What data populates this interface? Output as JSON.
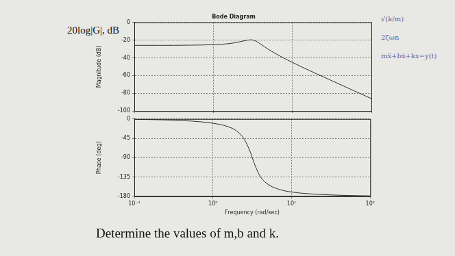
{
  "page": {
    "side_label": "20log|G|, dB",
    "question": "Determine the values of m,b and k.",
    "notes": [
      "√(k/m)",
      "2ζωn",
      "mẍ+bẋ+kx=y(t)"
    ]
  },
  "chart_data": [
    {
      "type": "line",
      "title": "Bode Diagram",
      "ylabel": "Magnitude (dB)",
      "log": "x",
      "grid": true,
      "tick_labels": "y",
      "color": "#2b2b2b",
      "x": [
        0.1,
        0.2,
        0.5,
        1,
        1.5,
        2,
        2.5,
        3,
        3.16,
        3.5,
        4,
        5,
        7,
        10,
        20,
        50,
        100
      ],
      "values": [
        -26.0,
        -26.0,
        -25.8,
        -25.2,
        -24.2,
        -22.6,
        -20.7,
        -19.7,
        -20.0,
        -21.5,
        -24.8,
        -30.6,
        -38.1,
        -45.2,
        -57.8,
        -73.9,
        -86.0
      ],
      "xlim": [
        0.1,
        100
      ],
      "xticks": [
        {
          "value": 0.1,
          "label": "10⁻¹"
        },
        {
          "value": 1,
          "label": "10⁰"
        },
        {
          "value": 10,
          "label": "10¹"
        },
        {
          "value": 100,
          "label": "10²"
        }
      ],
      "ylim": [
        -100,
        0
      ],
      "yticks": [
        -100,
        -80,
        -60,
        -40,
        -20,
        0
      ]
    },
    {
      "type": "line",
      "xlabel": "Frequency (rad/sec)",
      "ylabel": "Phase (deg)",
      "log": "x",
      "grid": true,
      "color": "#2b2b2b",
      "x": [
        0.1,
        0.2,
        0.5,
        1,
        1.5,
        2,
        2.5,
        3,
        3.16,
        3.5,
        4,
        5,
        7,
        10,
        20,
        50,
        100
      ],
      "values": [
        -0.9,
        -1.8,
        -4.6,
        -10,
        -17,
        -28,
        -47,
        -78,
        -90,
        -112,
        -134,
        -152,
        -164,
        -170,
        -175,
        -178,
        -179
      ],
      "xlim": [
        0.1,
        100
      ],
      "xticks": [
        {
          "value": 0.1,
          "label": "10⁻¹"
        },
        {
          "value": 1,
          "label": "10⁰"
        },
        {
          "value": 10,
          "label": "10¹"
        },
        {
          "value": 100,
          "label": "10²"
        }
      ],
      "ylim": [
        -180,
        0
      ],
      "yticks": [
        -180,
        -135,
        -90,
        -45,
        0
      ]
    }
  ]
}
